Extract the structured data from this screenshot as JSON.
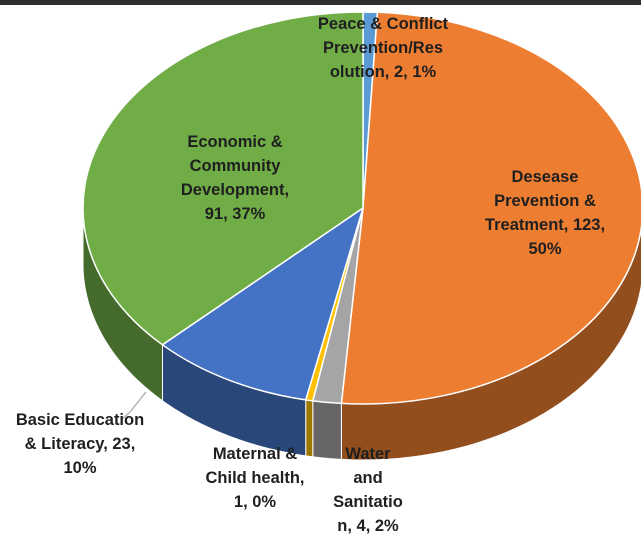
{
  "chart_data": {
    "type": "pie",
    "title": "",
    "slices": [
      {
        "name": "Peace & Conflict Prevention/Resolution",
        "value": 2,
        "percent": "1%",
        "color": "#5b9bd5"
      },
      {
        "name": "Desease Prevention & Treatment",
        "value": 123,
        "percent": "50%",
        "color": "#ed7d31"
      },
      {
        "name": "Water and Sanitation",
        "value": 4,
        "percent": "2%",
        "color": "#a5a5a5"
      },
      {
        "name": "Maternal & Child health",
        "value": 1,
        "percent": "0%",
        "color": "#ffc000"
      },
      {
        "name": "Basic Education & Literacy",
        "value": 23,
        "percent": "10%",
        "color": "#4472c4"
      },
      {
        "name": "Economic & Community Development",
        "value": 91,
        "percent": "37%",
        "color": "#70ad47"
      }
    ],
    "data_labels": {
      "peace": [
        "Peace & Conflict",
        "Prevention/Res",
        "olution, 2, 1%"
      ],
      "disease": [
        "Desease",
        "Prevention &",
        "Treatment, 123,",
        "50%"
      ],
      "water": [
        "Water",
        "and",
        "Sanitatio",
        "n, 4, 2%"
      ],
      "maternal": [
        "Maternal &",
        "Child health,",
        "1, 0%"
      ],
      "education": [
        "Basic Education",
        "& Literacy, 23,",
        "10%"
      ],
      "economic": [
        "Economic &",
        "Community",
        "Development,",
        "91, 37%"
      ]
    }
  }
}
